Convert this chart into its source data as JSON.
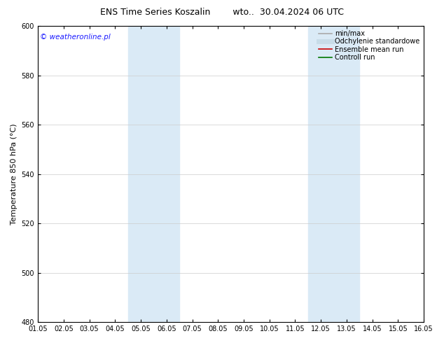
{
  "title": "ENS Time Series Koszalin        wto..  30.04.2024 06 UTC",
  "ylabel": "Temperature 850 hPa (°C)",
  "xlim": [
    0,
    15
  ],
  "ylim": [
    480,
    600
  ],
  "yticks": [
    480,
    500,
    520,
    540,
    560,
    580,
    600
  ],
  "xtick_labels": [
    "01.05",
    "02.05",
    "03.05",
    "04.05",
    "05.05",
    "06.05",
    "07.05",
    "08.05",
    "09.05",
    "10.05",
    "11.05",
    "12.05",
    "13.05",
    "14.05",
    "15.05",
    "16.05"
  ],
  "xtick_positions": [
    0,
    1,
    2,
    3,
    4,
    5,
    6,
    7,
    8,
    9,
    10,
    11,
    12,
    13,
    14,
    15
  ],
  "shaded_regions": [
    {
      "xmin": 3.5,
      "xmax": 5.5
    },
    {
      "xmin": 10.5,
      "xmax": 12.5
    }
  ],
  "shaded_color": "#daeaf6",
  "watermark_text": "© weatheronline.pl",
  "watermark_color": "#1a1aff",
  "legend_entries": [
    {
      "label": "min/max",
      "color": "#aaaaaa",
      "lw": 1.2
    },
    {
      "label": "Odchylenie standardowe",
      "color": "#c8dce8",
      "lw": 5
    },
    {
      "label": "Ensemble mean run",
      "color": "#cc0000",
      "lw": 1.2
    },
    {
      "label": "Controll run",
      "color": "#007700",
      "lw": 1.2
    }
  ],
  "background_color": "#ffffff",
  "grid_color": "#cccccc",
  "title_fontsize": 9,
  "tick_fontsize": 7,
  "ylabel_fontsize": 8,
  "legend_fontsize": 7,
  "watermark_fontsize": 7.5
}
